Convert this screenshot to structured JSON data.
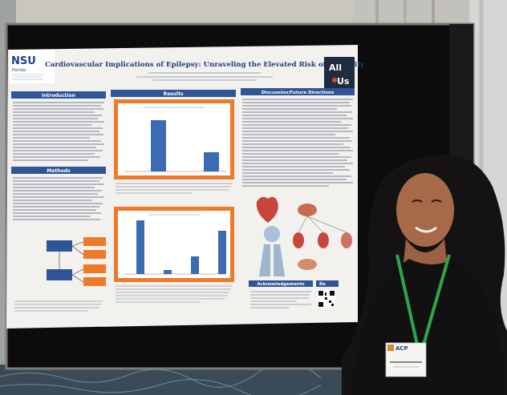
{
  "poster": {
    "logo_main": "NSU",
    "logo_sub": "Florida",
    "title": "Cardiovascular Implications of Epilepsy: Unraveling the Elevated Risk of Mortality",
    "allofus_line1": "All",
    "allofus_line2": "Us",
    "sections": {
      "introduction": "Introduction",
      "methods": "Methods",
      "results": "Results",
      "discussion": "Discussion/Future Directions",
      "acknowledgements": "Acknowledgements",
      "references": "Re"
    }
  },
  "badge": {
    "brand": "ACP"
  },
  "colors": {
    "banner_blue": "#2f5597",
    "chart_orange": "#ee7a2a",
    "bar_blue": "#3d6bb3",
    "poster_bg": "#f2f1ee",
    "board_black": "#0c0c0c",
    "curtain": "#b5b2ab",
    "lanyard": "#2fa64a"
  }
}
